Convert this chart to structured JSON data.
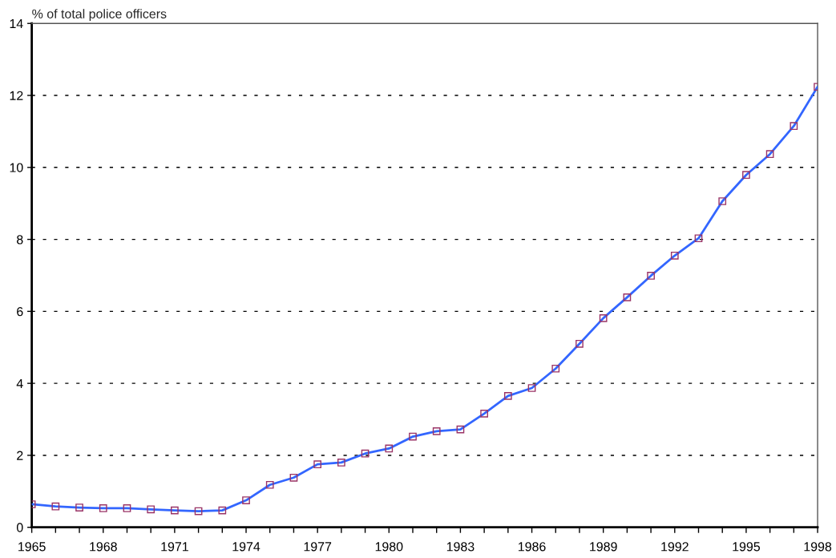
{
  "chart_data": {
    "type": "line",
    "ylabel": "% of total police officers",
    "x": [
      1965,
      1966,
      1967,
      1968,
      1969,
      1970,
      1971,
      1972,
      1973,
      1974,
      1975,
      1976,
      1977,
      1978,
      1979,
      1980,
      1981,
      1982,
      1983,
      1984,
      1985,
      1986,
      1987,
      1988,
      1989,
      1990,
      1991,
      1992,
      1993,
      1994,
      1995,
      1996,
      1997,
      1998
    ],
    "series": [
      {
        "color": "#3366ff",
        "values": [
          0.64,
          0.58,
          0.55,
          0.53,
          0.53,
          0.5,
          0.47,
          0.45,
          0.47,
          0.75,
          1.18,
          1.38,
          1.75,
          1.8,
          2.05,
          2.19,
          2.52,
          2.67,
          2.72,
          3.16,
          3.65,
          3.87,
          4.41,
          5.1,
          5.81,
          6.39,
          6.99,
          7.55,
          8.03,
          9.06,
          9.79,
          10.37,
          11.15,
          12.24
        ]
      }
    ],
    "marker": "square",
    "line_style": "solid",
    "grid": "y",
    "xlim": [
      1965,
      1998
    ],
    "ylim": [
      0,
      14
    ],
    "xticks": [
      1965,
      {
        "value": 1966,
        "label": null
      },
      {
        "value": 1967,
        "label": null
      },
      1968,
      {
        "value": 1969,
        "label": null
      },
      {
        "value": 1970,
        "label": null
      },
      1971,
      {
        "value": 1972,
        "label": null
      },
      {
        "value": 1973,
        "label": null
      },
      1974,
      {
        "value": 1975,
        "label": null
      },
      {
        "value": 1976,
        "label": null
      },
      1977,
      {
        "value": 1978,
        "label": null
      },
      {
        "value": 1979,
        "label": null
      },
      1980,
      {
        "value": 1981,
        "label": null
      },
      {
        "value": 1982,
        "label": null
      },
      1983,
      {
        "value": 1984,
        "label": null
      },
      {
        "value": 1985,
        "label": null
      },
      1986,
      {
        "value": 1987,
        "label": null
      },
      {
        "value": 1988,
        "label": null
      },
      1989,
      {
        "value": 1990,
        "label": null
      },
      {
        "value": 1991,
        "label": null
      },
      1992,
      {
        "value": 1993,
        "label": null
      },
      {
        "value": 1994,
        "label": null
      },
      1995,
      {
        "value": 1996,
        "label": null
      },
      {
        "value": 1997,
        "label": null
      },
      1998
    ],
    "yticks": [
      0,
      2,
      4,
      6,
      8,
      10,
      12,
      14
    ]
  }
}
